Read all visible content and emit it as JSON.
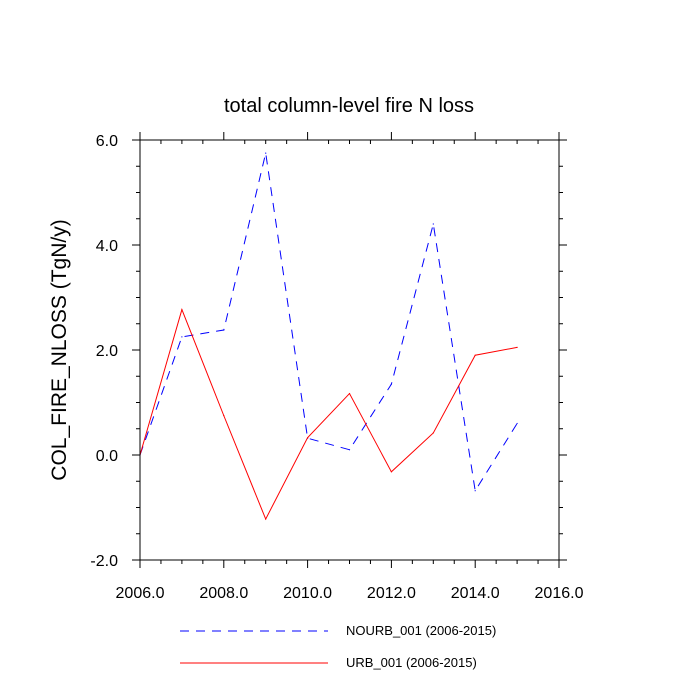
{
  "chart_data": {
    "type": "line",
    "title": "total column-level fire N loss",
    "xlabel": "",
    "ylabel": "COL_FIRE_NLOSS  (TgN/y)",
    "xlim": [
      2006,
      2016
    ],
    "ylim": [
      -2,
      6
    ],
    "x_ticks": [
      "2006.0",
      "2008.0",
      "2010.0",
      "2012.0",
      "2014.0",
      "2016.0"
    ],
    "y_ticks": [
      "-2.0",
      "0.0",
      "2.0",
      "4.0",
      "6.0"
    ],
    "x_tick_values": [
      2006,
      2008,
      2010,
      2012,
      2014,
      2016
    ],
    "y_tick_values": [
      -2,
      0,
      2,
      4,
      6
    ],
    "x_minor_step": 0.5,
    "y_minor_step": 0.5,
    "grid": false,
    "legend_position": "bottom",
    "x": [
      2006,
      2007,
      2008,
      2009,
      2010,
      2011,
      2012,
      2013,
      2014,
      2015
    ],
    "series": [
      {
        "name": "NOURB_001 (2006-2015)",
        "color": "#0000ff",
        "dash": "dashed",
        "values": [
          0.0,
          2.25,
          2.38,
          5.75,
          0.32,
          0.1,
          1.35,
          4.4,
          -0.68,
          0.6
        ]
      },
      {
        "name": "URB_001 (2006-2015)",
        "color": "#ff0000",
        "dash": "solid",
        "values": [
          0.0,
          2.77,
          0.75,
          -1.22,
          0.33,
          1.17,
          -0.32,
          0.42,
          1.9,
          2.05
        ]
      }
    ]
  }
}
